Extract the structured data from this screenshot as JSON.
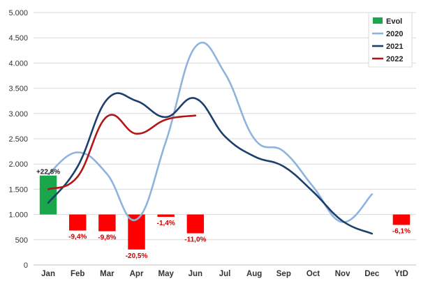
{
  "chart_data": {
    "type": "line",
    "title": "",
    "xlabel": "",
    "ylabel": "",
    "categories": [
      "Jan",
      "Feb",
      "Mar",
      "Apr",
      "May",
      "Jun",
      "Jul",
      "Aug",
      "Sep",
      "Oct",
      "Nov",
      "Dec",
      "YtD"
    ],
    "ylim": [
      0,
      5000
    ],
    "yticks": [
      0,
      500,
      1000,
      1500,
      2000,
      2500,
      3000,
      3500,
      4000,
      4500,
      5000
    ],
    "ytick_labels": [
      "0",
      "500",
      "1.000",
      "1.500",
      "2.000",
      "2.500",
      "3.000",
      "3.500",
      "4.000",
      "4.500",
      "5.000"
    ],
    "grid": true,
    "legend_position": "top-right",
    "evol": {
      "name": "Evol",
      "baseline": 1000,
      "values": [
        22.8,
        -9.4,
        -9.8,
        -20.5,
        -1.4,
        -11.0,
        null,
        null,
        null,
        null,
        null,
        null,
        -6.1
      ],
      "labels": [
        "+22,8%",
        "-9,4%",
        "-9,8%",
        "-20,5%",
        "-1,4%",
        "-11,0%",
        "",
        "",
        "",
        "",
        "",
        "",
        "-6,1%"
      ],
      "positive_color": "#1aa64a",
      "negative_color": "#ff0000"
    },
    "series": [
      {
        "name": "2020",
        "color": "#8eb4dd",
        "values": [
          1800,
          2230,
          1800,
          900,
          2450,
          4320,
          3800,
          2500,
          2250,
          1550,
          850,
          1400,
          null
        ]
      },
      {
        "name": "2021",
        "color": "#1c3f6e",
        "values": [
          1230,
          1950,
          3280,
          3250,
          2930,
          3300,
          2550,
          2150,
          1950,
          1450,
          870,
          620,
          null
        ]
      },
      {
        "name": "2022",
        "color": "#b01818",
        "values": [
          1500,
          1750,
          2940,
          2600,
          2880,
          2960,
          null,
          null,
          null,
          null,
          null,
          null,
          null
        ]
      }
    ]
  }
}
